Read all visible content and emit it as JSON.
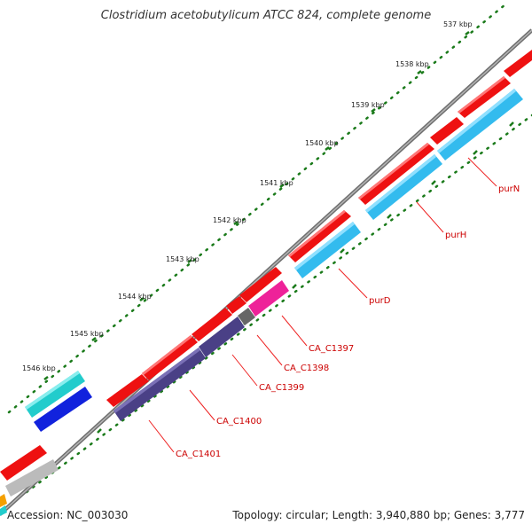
{
  "title": "Clostridium acetobutylicum ATCC 824, complete genome",
  "footer": {
    "accession": "Accession: NC_003030",
    "summary": "Topology: circular; Length: 3,940,880 bp; Genes: 3,777"
  },
  "colors": {
    "backbone": "#8a8a8a",
    "tick": "#1a7a1a",
    "dot": "#1a7a1a",
    "label": "#cc0000",
    "leader": "#ee2222"
  },
  "ticks": [
    "537 kbp",
    "1538 kbp",
    "1539 kbp",
    "1540 kbp",
    "1541 kbp",
    "1542 kbp",
    "1543 kbp",
    "1544 kbp",
    "1545 kbp",
    "1546 kbp"
  ],
  "gene_labels": [
    "purN",
    "purH",
    "purD",
    "CA_C1397",
    "CA_C1398",
    "CA_C1399",
    "CA_C1400",
    "CA_C1401"
  ],
  "features": [
    {
      "track": "outer",
      "color": "#ee1111",
      "name": "forward-gene"
    },
    {
      "track": "inner",
      "color": "#33bbee",
      "name": "purN"
    },
    {
      "track": "inner",
      "color": "#33bbee",
      "name": "purH"
    },
    {
      "track": "inner",
      "color": "#33bbee",
      "name": "purD"
    },
    {
      "track": "inner",
      "color": "#ee2299",
      "name": "CA_C1397"
    },
    {
      "track": "inner",
      "color": "#666666",
      "name": "CA_C1398"
    },
    {
      "track": "inner",
      "color": "#4a4086",
      "name": "CA_C1399"
    },
    {
      "track": "inner",
      "color": "#4a4086",
      "name": "CA_C1400"
    },
    {
      "track": "inner",
      "color": "#4a4086",
      "name": "CA_C1401"
    },
    {
      "track": "upper",
      "color": "#22cccc",
      "name": "upper-cyan-gene"
    },
    {
      "track": "upper",
      "color": "#1122dd",
      "name": "upper-blue-gene"
    },
    {
      "track": "lower",
      "color": "#bbbbbb",
      "name": "lower-gray-gene"
    }
  ]
}
